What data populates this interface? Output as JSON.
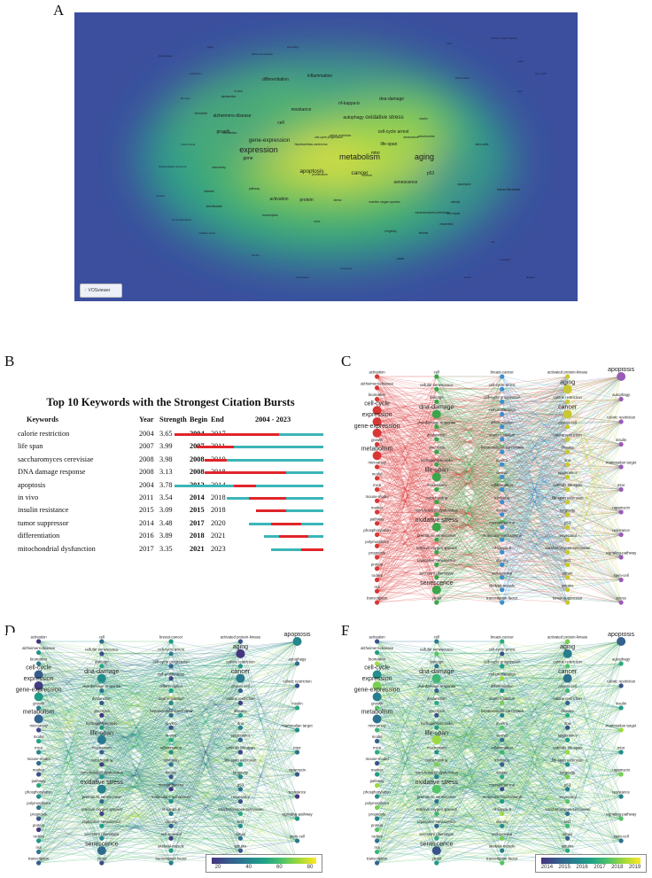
{
  "panels": {
    "a": "A",
    "b": "B",
    "c": "C",
    "d": "D",
    "e": "E"
  },
  "density_map": {
    "logo": "VOSviewer",
    "labels": [
      {
        "t": "aging",
        "s": "large"
      },
      {
        "t": "metabolism",
        "s": "large"
      },
      {
        "t": "expression",
        "s": "large"
      },
      {
        "t": "gene-expression",
        "s": "medium"
      },
      {
        "t": "oxidative stress",
        "s": "medium"
      },
      {
        "t": "cancer",
        "s": "medium"
      },
      {
        "t": "apoptosis",
        "s": "medium"
      },
      {
        "t": "dna-damage",
        "s": "small"
      },
      {
        "t": "activation",
        "s": "small"
      },
      {
        "t": "life-span",
        "s": "small"
      },
      {
        "t": "senescence",
        "s": "small"
      },
      {
        "t": "cell",
        "s": "small"
      },
      {
        "t": "protein",
        "s": "small"
      },
      {
        "t": "growth",
        "s": "small"
      },
      {
        "t": "alzheimers-disease",
        "s": "small"
      },
      {
        "t": "differentiation",
        "s": "small"
      },
      {
        "t": "inflammation",
        "s": "small"
      },
      {
        "t": "p53",
        "s": "small"
      },
      {
        "t": "resistance",
        "s": "small"
      },
      {
        "t": "gene",
        "s": "small"
      },
      {
        "t": "nf-kappa-b",
        "s": "small"
      },
      {
        "t": "autophagy",
        "s": "small"
      },
      {
        "t": "cell-cycle arrest",
        "s": "small"
      },
      {
        "t": "mtor",
        "s": "small"
      },
      {
        "t": "pathway",
        "s": "tiny"
      },
      {
        "t": "disease",
        "s": "tiny"
      },
      {
        "t": "longevity",
        "s": "tiny"
      },
      {
        "t": "transcription",
        "s": "tiny"
      },
      {
        "t": "mice",
        "s": "tiny"
      },
      {
        "t": "stress",
        "s": "tiny"
      },
      {
        "t": "mitochondria",
        "s": "tiny"
      },
      {
        "t": "sirtuins",
        "s": "tiny"
      },
      {
        "t": "insulin",
        "s": "tiny"
      },
      {
        "t": "saccharomyces-cerevisiae",
        "s": "tiny"
      },
      {
        "t": "caloric restriction",
        "s": "tiny"
      },
      {
        "t": "reactive oxygen species",
        "s": "tiny"
      },
      {
        "t": "cell-cycle progression",
        "s": "tiny"
      },
      {
        "t": "hepatocellular-carcinoma",
        "s": "tiny"
      },
      {
        "t": "dysfunction",
        "s": "tiny"
      },
      {
        "t": "microarray",
        "s": "tiny"
      },
      {
        "t": "identification",
        "s": "tiny"
      },
      {
        "t": "biomarker",
        "s": "tiny"
      },
      {
        "t": "yeast",
        "s": "tiny"
      },
      {
        "t": "mechanism",
        "s": "tiny"
      },
      {
        "t": "survival",
        "s": "tiny"
      },
      {
        "t": "in-vivo",
        "s": "tiny"
      },
      {
        "t": "senescence",
        "s": "tiny"
      },
      {
        "t": "proliferation",
        "s": "tiny"
      },
      {
        "t": "dna-repair",
        "s": "tiny"
      },
      {
        "t": "stem-cells",
        "s": "tiny"
      },
      {
        "t": "rapamycin",
        "s": "tiny"
      },
      {
        "t": "human-fibroblasts",
        "s": "tiny"
      },
      {
        "t": "resveratrol",
        "s": "tiny"
      },
      {
        "t": "obesity",
        "s": "tiny"
      }
    ]
  },
  "burst_table": {
    "title": "Top 10 Keywords with the Strongest Citation Bursts",
    "columns": {
      "keyword": "Keywords",
      "year": "Year",
      "strength": "Strength",
      "begin": "Begin",
      "end": "End",
      "span": "2004 - 2023"
    },
    "timeline_start": 2004,
    "timeline_end": 2023,
    "rows": [
      {
        "keyword": "calorie restriction",
        "year": "2004",
        "strength": "3.65",
        "begin": "2004",
        "end": "2017"
      },
      {
        "keyword": "life span",
        "year": "2007",
        "strength": "3.99",
        "begin": "2007",
        "end": "2011"
      },
      {
        "keyword": "saccharomyces cerevisiae",
        "year": "2008",
        "strength": "3.98",
        "begin": "2008",
        "end": "2010"
      },
      {
        "keyword": "DNA damage response",
        "year": "2008",
        "strength": "3.13",
        "begin": "2008",
        "end": "2018"
      },
      {
        "keyword": "apoptosis",
        "year": "2004",
        "strength": "3.78",
        "begin": "2012",
        "end": "2014"
      },
      {
        "keyword": "in vivo",
        "year": "2011",
        "strength": "3.54",
        "begin": "2014",
        "end": "2018"
      },
      {
        "keyword": "insulin resistance",
        "year": "2015",
        "strength": "3.09",
        "begin": "2015",
        "end": "2018"
      },
      {
        "keyword": "tumor suppressor",
        "year": "2014",
        "strength": "3.48",
        "begin": "2017",
        "end": "2020"
      },
      {
        "keyword": "differentiation",
        "year": "2016",
        "strength": "3.89",
        "begin": "2018",
        "end": "2021"
      },
      {
        "keyword": "mitochondrial dysfunction",
        "year": "2017",
        "strength": "3.35",
        "begin": "2021",
        "end": "2023"
      }
    ]
  },
  "chart_data": [
    {
      "type": "table",
      "title": "Top 10 Keywords with the Strongest Citation Bursts",
      "columns": [
        "Keywords",
        "Year",
        "Strength",
        "Begin",
        "End"
      ],
      "rows": [
        [
          "calorie restriction",
          2004,
          3.65,
          2004,
          2017
        ],
        [
          "life span",
          2007,
          3.99,
          2007,
          2011
        ],
        [
          "saccharomyces cerevisiae",
          2008,
          3.98,
          2008,
          2010
        ],
        [
          "DNA damage response",
          2008,
          3.13,
          2008,
          2018
        ],
        [
          "apoptosis",
          2004,
          3.78,
          2012,
          2014
        ],
        [
          "in vivo",
          2011,
          3.54,
          2014,
          2018
        ],
        [
          "insulin resistance",
          2015,
          3.09,
          2015,
          2018
        ],
        [
          "tumor suppressor",
          2014,
          3.48,
          2017,
          2020
        ],
        [
          "differentiation",
          2016,
          3.89,
          2018,
          2021
        ],
        [
          "mitochondrial dysfunction",
          2017,
          3.35,
          2021,
          2023
        ]
      ]
    },
    {
      "type": "scatter",
      "description": "keyword co-occurrence networks (panels C, D, E) in five columns",
      "columns": [
        [
          "activation",
          "alzheimers-disease",
          "biomarker",
          "cell-cycle",
          "expression",
          "gene-expression",
          "growth",
          "metabolism",
          "microarray",
          "model",
          "mice",
          "mouse-model",
          "marker",
          "pathway",
          "phosphorylation",
          "polymorphism",
          "prognosis",
          "protein",
          "rodent",
          "rna",
          "transcription"
        ],
        [
          "cell",
          "cellular senescence",
          "damage",
          "dna-damage",
          "dna-damage response",
          "dysfunction",
          "glycolysis",
          "hydrogen-peroxide",
          "life-span",
          "mechanism",
          "mitochondria",
          "mitochondrial dysfunction",
          "oxidative stress",
          "premature senescence",
          "reactive oxygen species",
          "replicative senescence",
          "secretory phenotype",
          "senescence",
          "yeast"
        ],
        [
          "breast-cancer",
          "cell-cycle arrest",
          "cell-cycle progression",
          "cell-proliferation",
          "differentiation",
          "downregulation",
          "hepatocellular-carcinoma",
          "in-vitro",
          "in-vivo",
          "inflammation",
          "inhibition",
          "kinase",
          "messenger-rna",
          "molecular-mechanisms",
          "nf-kappa-b",
          "obesity",
          "self-renewal",
          "skeletal-muscle",
          "transcription factor"
        ],
        [
          "activated protein-kinase",
          "aging",
          "calorie restriction",
          "cancer",
          "cancer cell",
          "caloric restriction",
          "disease",
          "dna",
          "epigenetics",
          "extends life-span",
          "life-span extension",
          "longevity",
          "p53",
          "resveratrol",
          "saccharomyces-cerevisiae",
          "sirt1",
          "sirtuin",
          "sirtuins",
          "tumor-suppressor"
        ],
        [
          "apoptosis",
          "autophagy",
          "caloric restriction",
          "insulin",
          "mammalian target",
          "mtor",
          "rapamycin",
          "resistance",
          "signaling-pathway",
          "stem-cell",
          "stress"
        ]
      ]
    }
  ],
  "colorbar_d": {
    "ticks": [
      "20",
      "40",
      "60",
      "80"
    ],
    "min": 20,
    "max": 80
  },
  "colorbar_e": {
    "ticks": [
      "2014",
      "2015",
      "2016",
      "2017",
      "2018",
      "2019"
    ],
    "min": 2014,
    "max": 2019
  },
  "colors": {
    "cluster1": "#d93636",
    "cluster2": "#3aa54a",
    "cluster3": "#3a8fd0",
    "cluster4": "#c9c732",
    "cluster5": "#9a5ab8",
    "burst_red": "#e0252a",
    "burst_teal": "#3cb5b8"
  }
}
